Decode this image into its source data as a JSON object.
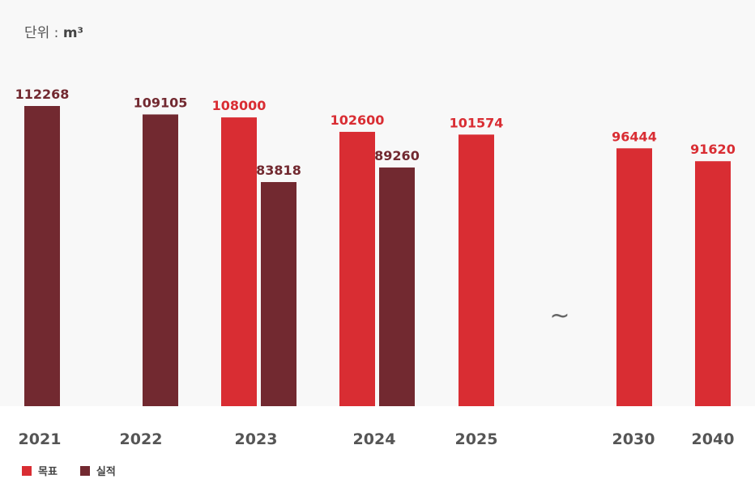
{
  "unit": {
    "label": "단위 :",
    "value": "m³"
  },
  "colors": {
    "target": "#d92d33",
    "actual": "#722930",
    "panel": "#f8f8f8"
  },
  "chart_data": {
    "type": "bar",
    "title": "",
    "xlabel": "",
    "ylabel": "단위 : m³",
    "ylim": [
      0,
      112268
    ],
    "categories": [
      "2021",
      "2022",
      "2023",
      "2024",
      "2025",
      "2030",
      "2040"
    ],
    "break_symbol": "~",
    "break_after": "2025",
    "series": [
      {
        "name": "목표",
        "color": "#d92d33",
        "values": [
          null,
          null,
          108000,
          102600,
          101574,
          96444,
          91620
        ]
      },
      {
        "name": "실적",
        "color": "#722930",
        "values": [
          112268,
          109105,
          83818,
          89260,
          null,
          null,
          null
        ]
      }
    ]
  },
  "legend": [
    {
      "label": "목표",
      "color": "#d92d33"
    },
    {
      "label": "실적",
      "color": "#722930"
    }
  ]
}
